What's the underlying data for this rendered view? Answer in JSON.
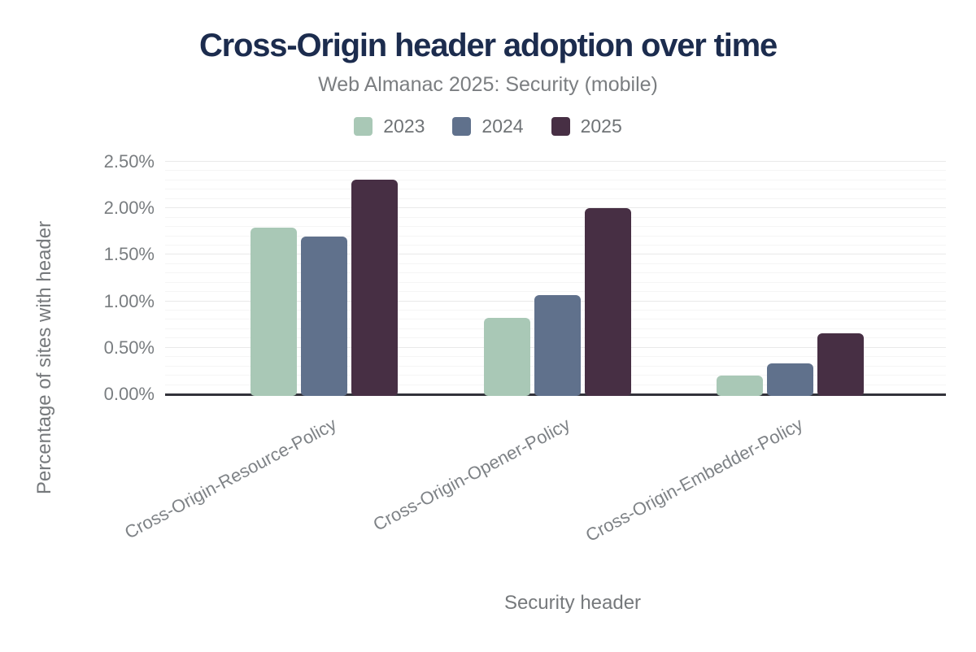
{
  "header": {
    "title": "Cross-Origin header adoption over time",
    "subtitle": "Web Almanac 2025: Security (mobile)"
  },
  "chart_data": {
    "type": "bar",
    "title": "Cross-Origin header adoption over time",
    "subtitle": "Web Almanac 2025: Security (mobile)",
    "categories": [
      "Cross-Origin-Resource-Policy",
      "Cross-Origin-Opener-Policy",
      "Cross-Origin-Embedder-Policy"
    ],
    "series": [
      {
        "name": "2023",
        "color": "#a9c8b6",
        "values": [
          1.79,
          0.82,
          0.2
        ]
      },
      {
        "name": "2024",
        "color": "#60718c",
        "values": [
          1.7,
          1.07,
          0.33
        ]
      },
      {
        "name": "2025",
        "color": "#472f44",
        "values": [
          2.31,
          2.0,
          0.66
        ]
      }
    ],
    "unit": "%",
    "xlabel": "Security header",
    "ylabel": "Percentage of sites with header",
    "ylim": [
      0,
      2.5
    ],
    "y_ticks": [
      "0.00%",
      "0.50%",
      "1.00%",
      "1.50%",
      "2.00%",
      "2.50%"
    ],
    "grid": {
      "minor_step": 0.1,
      "major_step": 0.5,
      "minor_on": true,
      "major_on": true
    },
    "legend_position": "top-center"
  },
  "colors": {
    "title": "#1c2c4e",
    "muted_text": "#76797c",
    "axis_line": "#32323a",
    "grid_minor": "#f5f5f5",
    "grid_major": "#e9e9e9",
    "background": "#ffffff"
  }
}
